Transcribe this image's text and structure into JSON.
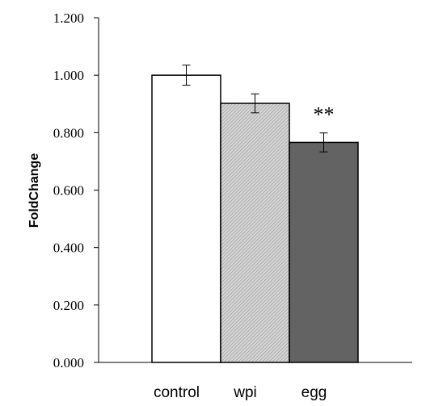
{
  "chart_data": {
    "type": "bar",
    "title": "",
    "xlabel": "",
    "ylabel": "FoldChange",
    "ylim": [
      0,
      1.2
    ],
    "yticks": [
      "0.000",
      "0.200",
      "0.400",
      "0.600",
      "0.800",
      "1.000",
      "1.200"
    ],
    "ytick_values": [
      0,
      0.2,
      0.4,
      0.6,
      0.8,
      1.0,
      1.2
    ],
    "categories": [
      "control",
      "wpi",
      "egg"
    ],
    "values": [
      1.0,
      0.902,
      0.766
    ],
    "errors": [
      0.035,
      0.033,
      0.033
    ],
    "bar_fills": [
      "#ffffff",
      "#c8c8c8",
      "#636363"
    ],
    "bar_patterns": [
      "none",
      "hatched",
      "none"
    ],
    "annotations": [
      {
        "category": "egg",
        "text": "**"
      }
    ],
    "grid": false,
    "legend": "none"
  }
}
